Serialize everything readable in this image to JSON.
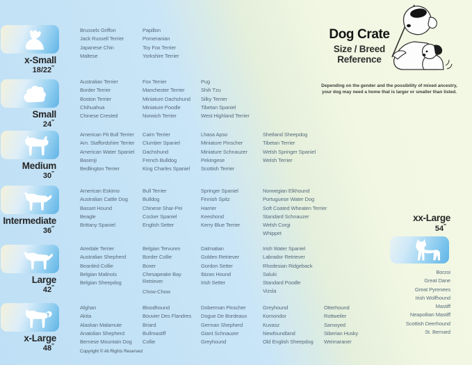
{
  "page": {
    "title": "Dog Crate",
    "subtitle_line1": "Size / Breed",
    "subtitle_line2": "Reference",
    "note_line1": "Depending on the gender and the possibility of mixed ancestry,",
    "note_line2": "your dog may need a home that is larger or smaller than listed.",
    "copyright": "Copyright © All Rights Reserved",
    "inch_mark": "″"
  },
  "colors": {
    "background_blue": "#bedff5",
    "background_green": "#f2f7e3",
    "badge_cream": "#f4f1da",
    "badge_blue": "#5fb4e6",
    "breed_text": "#576b7b",
    "label_text": "#262626"
  },
  "sizes": [
    {
      "label": "x-Small",
      "dimension": "18/22",
      "icon": "papillon-silhouette-icon",
      "columns": [
        [
          "Brussels Griffon",
          "Jack Russell Terrier",
          "Japanese Chin",
          "Maltese"
        ],
        [
          "Papillon",
          "Pomeranian",
          "Toy Fox Terrier",
          "Yorkshire Terrier"
        ]
      ]
    },
    {
      "label": "Small",
      "dimension": "24",
      "icon": "shih-tzu-silhouette-icon",
      "columns": [
        [
          "Australian Terrier",
          "Border Terrier",
          "Boston Terrier",
          "Chihuahua",
          "Chinese Crested"
        ],
        [
          "Fox Terrier",
          "Manchester Terrier",
          "Miniature Dachshund",
          "Miniature Poodle",
          "Norwich Terrier"
        ],
        [
          "Pug",
          "Shih Tzu",
          "Silky Terrier",
          "Tibetan Spaniel",
          "West Highland Terrier"
        ]
      ]
    },
    {
      "label": "Medium",
      "dimension": "30",
      "icon": "terrier-silhouette-icon",
      "columns": [
        [
          "American Pit Bull Terrier",
          "Am. Staffordshire Terrier",
          "American Water Spaniel",
          "Basenji",
          "Bedlington Terrier"
        ],
        [
          "Cairn Terrier",
          "Clumber Spaniel",
          "Dachshund",
          "French Bulldog",
          "King Charles Spaniel"
        ],
        [
          "Lhasa Apso",
          "Miniature Pinscher",
          "Miniature Schnauzer",
          "Pekingese",
          "Scottish Terrier"
        ],
        [
          "Shetland Sheepdog",
          "Tibetan Terrier",
          "Welsh Springer Spaniel",
          "Welsh Terrier"
        ]
      ]
    },
    {
      "label": "Intermediate",
      "dimension": "36",
      "icon": "spaniel-silhouette-icon",
      "columns": [
        [
          "American Eskimo",
          "Australian Cattle Dog",
          "Basset Hound",
          "Beagle",
          "Brittany Spaniel"
        ],
        [
          "Bull Terrier",
          "Bulldog",
          "Chinese Shar-Pei",
          "Cocker Spaniel",
          "English Setter"
        ],
        [
          "Springer Spaniel",
          "Finnish Spitz",
          "Harrier",
          "Keeshond",
          "Kerry Blue Terrier"
        ],
        [
          "Norwegian Elkhound",
          "Portuguese Water Dog",
          "Soft Coated Wheaten Terrier",
          "Standard Schnauzer",
          "Welsh Corgi",
          "Whippet"
        ]
      ]
    },
    {
      "label": "Large",
      "dimension": "42",
      "icon": "retriever-silhouette-icon",
      "columns": [
        [
          "Airedale Terrier",
          "Australian Shepherd",
          "Bearded Collie",
          "Belgian Malinois",
          "Belgian Sheepdog"
        ],
        [
          "Belgian Tervuren",
          "Border Collie",
          "Boxer",
          "Chesapeake Bay Retriever",
          "Chow-Chow"
        ],
        [
          "Dalmatian",
          "Golden Retriever",
          "Gordon Setter",
          "Ibizan Hound",
          "Irish Setter"
        ],
        [
          "Irish Water Spaniel",
          "Labrador Retriever",
          "Rhodesian Ridgeback",
          "Saluki",
          "Standard Poodle",
          "Vizsla"
        ]
      ]
    },
    {
      "label": "x-Large",
      "dimension": "48",
      "icon": "akita-silhouette-icon",
      "columns": [
        [
          "Afghan",
          "Akita",
          "Alaskan Malamute",
          "Anatolian Shepherd",
          "Bernese Mountain Dog"
        ],
        [
          "Bloodhound",
          "Bouvier Des Flandres",
          "Briard",
          "Bullmastiff",
          "Collie"
        ],
        [
          "Doberman Pinscher",
          "Dogue De Bordeaux",
          "German Shepherd",
          "Giant Schnauzer",
          "Greyhound"
        ],
        [
          "Greyhound",
          "Komondor",
          "Kuvasz",
          "Newfoundland",
          "Old English Sheepdog"
        ],
        [
          "Otterhound",
          "Rottweiler",
          "Samoyed",
          "Siberian Husky",
          "Weimaraner"
        ]
      ]
    },
    {
      "label": "xx-Large",
      "dimension": "54",
      "icon": "great-dane-silhouette-icon",
      "columns": [
        [
          "Borzoi",
          "Great Dane",
          "Great Pyrenees",
          "Irish Wolfhound",
          "Mastiff",
          "Neapolitan Mastiff",
          "Scottish Deerhound",
          "St. Bernard"
        ]
      ]
    }
  ]
}
